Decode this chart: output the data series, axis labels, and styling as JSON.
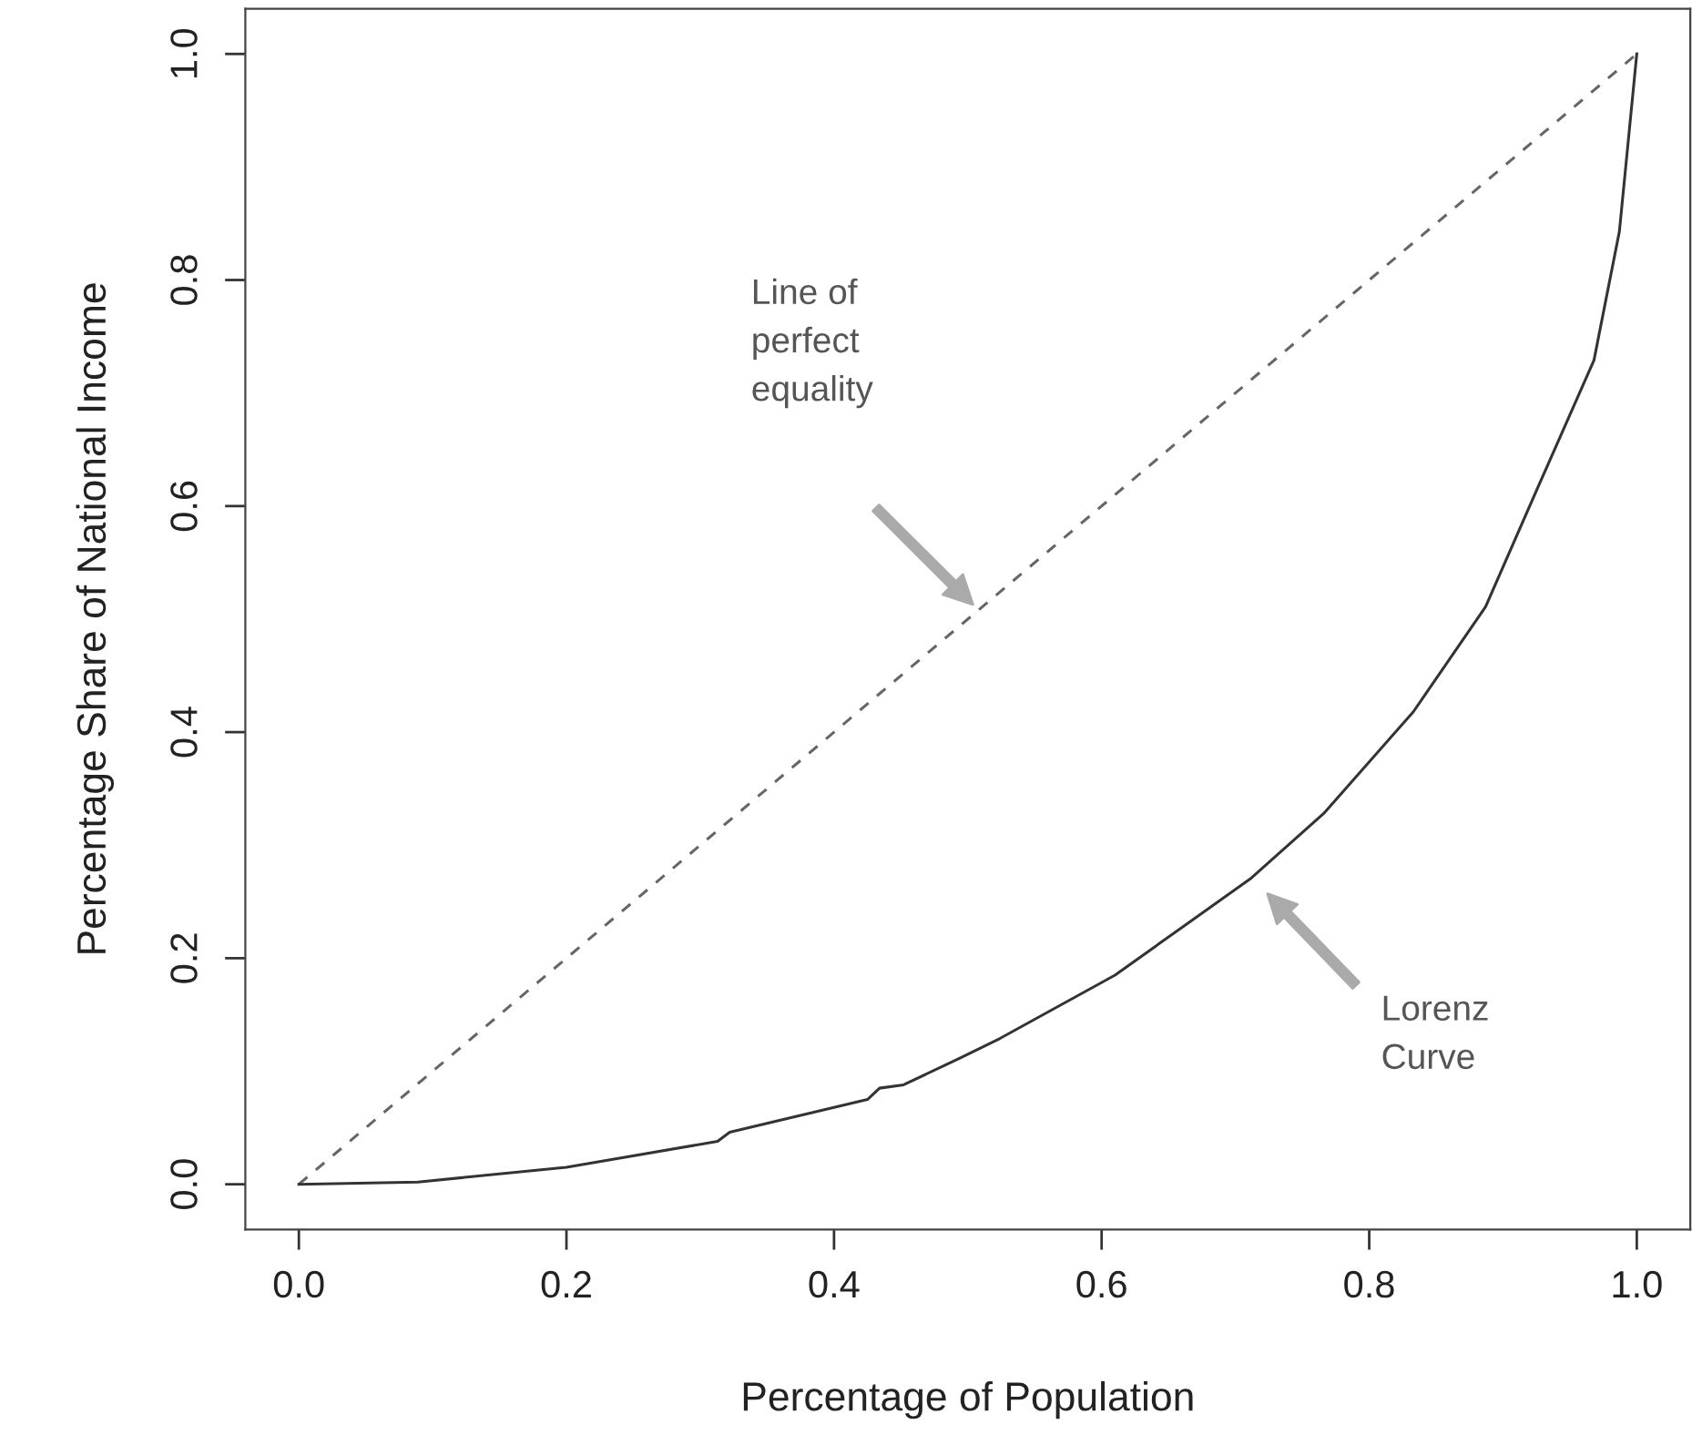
{
  "chart_data": {
    "type": "line",
    "xlabel": "Percentage of Population",
    "ylabel": "Percentage Share of National Income",
    "xlim": [
      -0.04,
      1.04
    ],
    "ylim": [
      -0.04,
      1.04
    ],
    "xticks": [
      {
        "value": 0,
        "label": "0.0"
      },
      0.2,
      0.4,
      0.6,
      0.8,
      {
        "value": 1,
        "label": "1.0"
      }
    ],
    "yticks": [
      {
        "value": 0,
        "label": "0.0"
      },
      0.2,
      0.4,
      0.6,
      0.8,
      {
        "value": 1,
        "label": "1.0"
      }
    ],
    "grid": false,
    "marker": "none",
    "series": [
      {
        "color": "#666666",
        "line_style": "dashed",
        "x": [
          0,
          1
        ],
        "values": [
          0,
          1
        ]
      },
      {
        "color": "#333333",
        "line_style": "solid",
        "x": [
          0,
          0.089,
          0.2,
          0.313,
          0.322,
          0.425,
          0.434,
          0.452,
          0.493,
          0.524,
          0.61,
          0.712,
          0.766,
          0.833,
          0.887,
          0.927,
          0.968,
          0.987,
          1
        ],
        "values": [
          0,
          0.002,
          0.015,
          0.038,
          0.046,
          0.075,
          0.085,
          0.088,
          0.111,
          0.129,
          0.185,
          0.271,
          0.328,
          0.418,
          0.511,
          0.619,
          0.729,
          0.843,
          1
        ]
      }
    ],
    "annotations": [
      "Line of\nperfect\nequality",
      "Lorenz\nCurve"
    ]
  }
}
